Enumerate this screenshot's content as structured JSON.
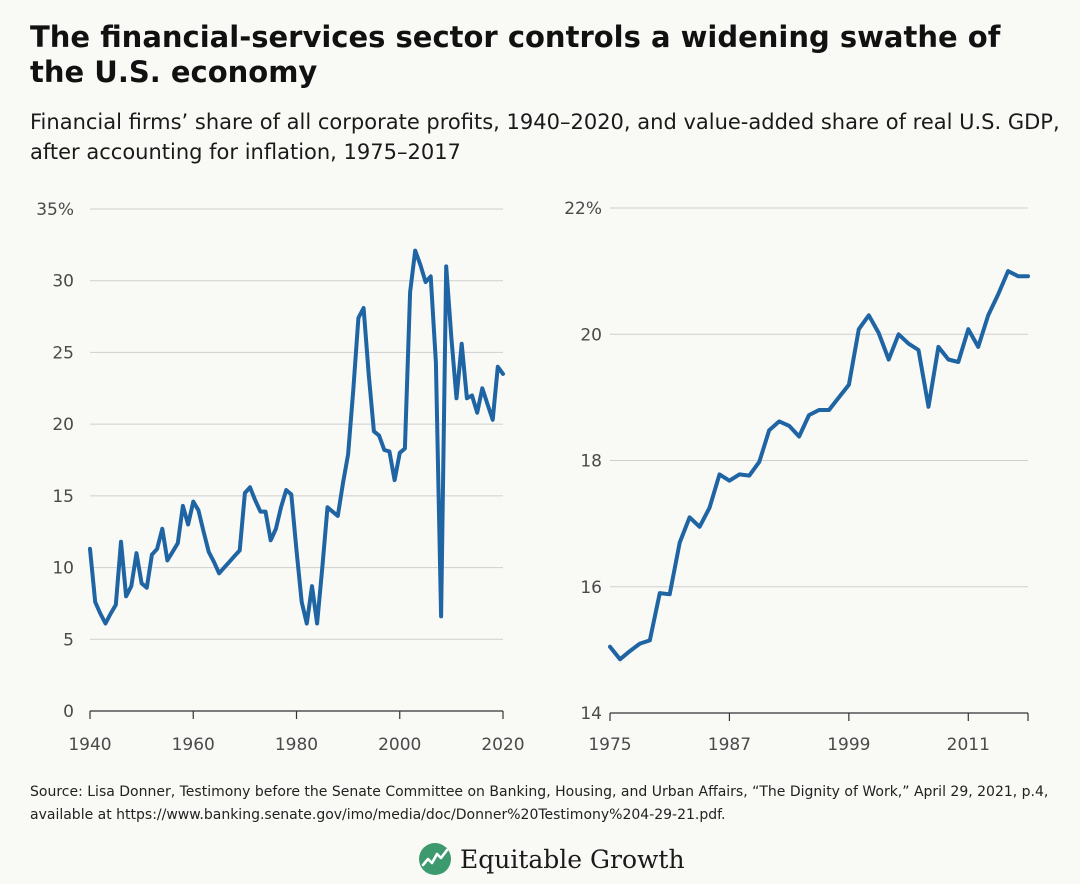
{
  "title": "The financial-services sector controls a widening swathe of the U.S. economy",
  "subtitle": "Financial firms’ share of all corporate profits, 1940–2020, and value-added share of real U.S. GDP, after accounting for inflation, 1975–2017",
  "source": "Source: Lisa Donner, Testimony before the Senate Committee on Banking, Housing, and Urban Affairs, “The Dignity of Work,” April 29, 2021, p.4, available at https://www.banking.senate.gov/imo/media/doc/Donner%20Testimony%204-29-21.pdf.",
  "brand": {
    "name": "Equitable Growth",
    "icon": "rising-line-logo-icon",
    "color": "#3c9a6e"
  },
  "colors": {
    "series": "#1f64a3",
    "grid": "#cfcfcf"
  },
  "chart_data": [
    {
      "type": "line",
      "title": "",
      "xlabel": "",
      "ylabel": "",
      "xlim": [
        1940,
        2020
      ],
      "ylim": [
        0,
        35
      ],
      "x_ticks": [
        1940,
        1960,
        1980,
        2000,
        2020
      ],
      "y_ticks": [
        0,
        5,
        10,
        15,
        20,
        25,
        30,
        35
      ],
      "y_tick_labels": [
        "0",
        "5",
        "10",
        "15",
        "20",
        "25",
        "30",
        "35%"
      ],
      "grid": true,
      "series": [
        {
          "x": [
            1940,
            1941,
            1942,
            1943,
            1944,
            1945,
            1946,
            1947,
            1948,
            1949,
            1950,
            1951,
            1952,
            1953,
            1954,
            1955,
            1956,
            1957,
            1958,
            1959,
            1960,
            1961,
            1962,
            1963,
            1964,
            1965,
            1966,
            1967,
            1968,
            1969,
            1970,
            1971,
            1972,
            1973,
            1974,
            1975,
            1976,
            1977,
            1978,
            1979,
            1980,
            1981,
            1982,
            1983,
            1984,
            1985,
            1986,
            1987,
            1988,
            1989,
            1990,
            1991,
            1992,
            1993,
            1994,
            1995,
            1996,
            1997,
            1998,
            1999,
            2000,
            2001,
            2002,
            2003,
            2004,
            2005,
            2006,
            2007,
            2008,
            2009,
            2010,
            2011,
            2012,
            2013,
            2014,
            2015,
            2016,
            2017,
            2018,
            2019,
            2020
          ],
          "values": [
            11.3,
            7.6,
            6.8,
            6.1,
            6.8,
            7.4,
            11.8,
            8.0,
            8.7,
            11.0,
            8.9,
            8.6,
            10.9,
            11.3,
            12.7,
            10.5,
            11.1,
            11.7,
            14.3,
            13.0,
            14.6,
            14.0,
            12.5,
            11.1,
            10.4,
            9.6,
            10.0,
            10.4,
            10.8,
            11.2,
            15.2,
            15.6,
            14.7,
            13.9,
            13.9,
            11.9,
            12.7,
            14.2,
            15.4,
            15.1,
            11.2,
            7.6,
            6.1,
            8.7,
            6.1,
            10.0,
            14.2,
            13.9,
            13.6,
            15.9,
            17.9,
            22.4,
            27.4,
            28.1,
            23.4,
            19.5,
            19.2,
            18.2,
            18.1,
            16.1,
            18.0,
            18.3,
            29.2,
            32.1,
            31.1,
            29.9,
            30.3,
            24.3,
            6.6,
            31.0,
            26.0,
            21.8,
            25.6,
            21.8,
            22.0,
            20.8,
            22.5,
            21.4,
            20.3,
            24.0,
            23.5
          ]
        }
      ]
    },
    {
      "type": "line",
      "title": "",
      "xlabel": "",
      "ylabel": "",
      "xlim": [
        1975,
        2017
      ],
      "ylim": [
        14,
        22
      ],
      "x_ticks": [
        1975,
        1987,
        1999,
        2011
      ],
      "y_ticks": [
        14,
        16,
        18,
        20,
        22
      ],
      "y_tick_labels": [
        "14",
        "16",
        "18",
        "20",
        "22%"
      ],
      "grid": true,
      "series": [
        {
          "x": [
            1975,
            1976,
            1977,
            1978,
            1979,
            1980,
            1981,
            1982,
            1983,
            1984,
            1985,
            1986,
            1987,
            1988,
            1989,
            1990,
            1991,
            1992,
            1993,
            1994,
            1995,
            1996,
            1997,
            1998,
            1999,
            2000,
            2001,
            2002,
            2003,
            2004,
            2005,
            2006,
            2007,
            2008,
            2009,
            2010,
            2011,
            2012,
            2013,
            2014,
            2015,
            2016,
            2017
          ],
          "values": [
            15.05,
            14.85,
            14.98,
            15.1,
            15.15,
            15.9,
            15.88,
            16.7,
            17.1,
            16.95,
            17.25,
            17.78,
            17.68,
            17.78,
            17.76,
            17.98,
            18.48,
            18.62,
            18.55,
            18.38,
            18.72,
            18.8,
            18.8,
            19.0,
            19.2,
            20.08,
            20.3,
            20.02,
            19.6,
            20.0,
            19.85,
            19.75,
            18.85,
            19.8,
            19.6,
            19.56,
            20.08,
            19.8,
            20.3,
            20.63,
            21.0,
            20.92,
            20.92
          ]
        }
      ]
    }
  ]
}
